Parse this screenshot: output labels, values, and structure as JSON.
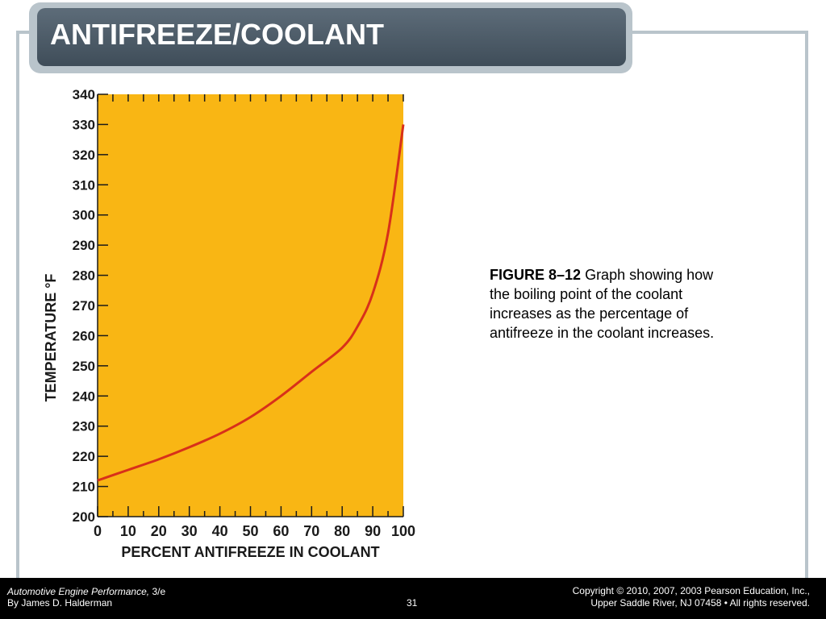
{
  "slide": {
    "title": "ANTIFREEZE/COOLANT",
    "caption": {
      "figure_label": "FIGURE 8–12",
      "text": "Graph showing how the boiling point of the coolant increases as the percentage of antifreeze in the coolant increases."
    },
    "page_number": "31"
  },
  "footer": {
    "book_title": "Automotive Engine Performance,",
    "edition": "3/e",
    "author": "By James D. Halderman",
    "copyright_line1": "Copyright © 2010, 2007, 2003 Pearson Education, Inc.,",
    "copyright_line2": "Upper Saddle River, NJ 07458 • All rights reserved."
  },
  "chart_data": {
    "type": "line",
    "xlabel": "PERCENT ANTIFREEZE IN COOLANT",
    "ylabel": "TEMPERATURE °F",
    "xlim": [
      0,
      100
    ],
    "ylim": [
      200,
      340
    ],
    "x_ticks": [
      0,
      10,
      20,
      30,
      40,
      50,
      60,
      70,
      80,
      90,
      100
    ],
    "y_ticks": [
      200,
      210,
      220,
      230,
      240,
      250,
      260,
      270,
      280,
      290,
      300,
      310,
      320,
      330,
      340
    ],
    "series": [
      {
        "x": [
          0,
          10,
          20,
          30,
          40,
          50,
          60,
          70,
          80,
          85,
          90,
          95,
          100
        ],
        "y": [
          212,
          215.5,
          219,
          223,
          227.5,
          233,
          240,
          248,
          256,
          263,
          274,
          294,
          330
        ]
      }
    ],
    "colors": {
      "background": "#f9b614",
      "line": "#d8301a",
      "axis": "#1a1a1a"
    },
    "grid": false
  }
}
